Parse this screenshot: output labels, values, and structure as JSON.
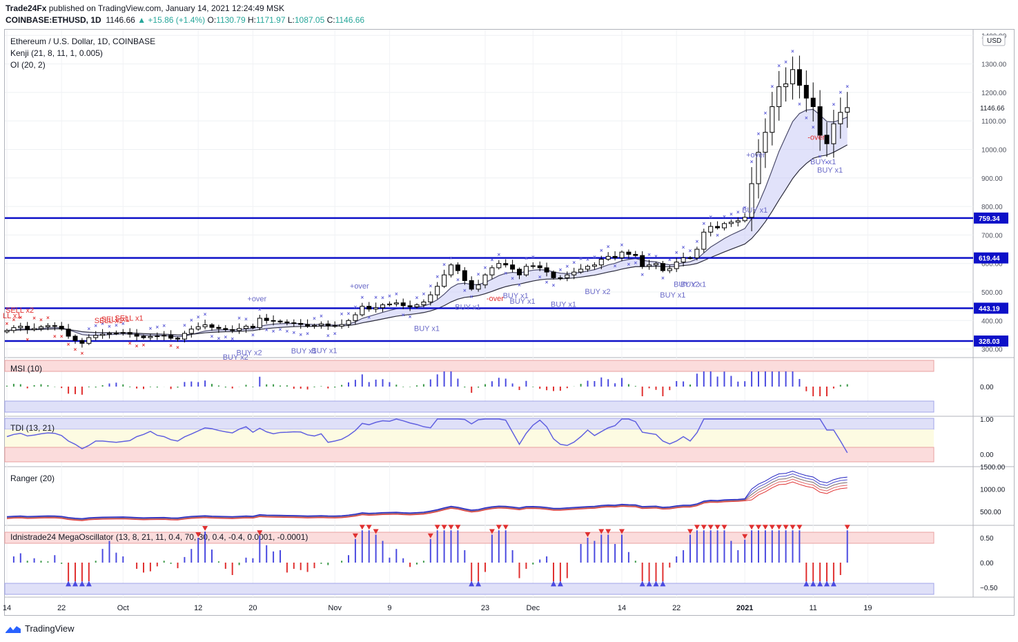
{
  "header": {
    "publisher": "Trade24Fx",
    "published_text": "published on TradingView.com, January 14, 2021 12:24:49 MSK",
    "symbol": "COINBASE:ETHUSD, 1D",
    "last": "1146.66",
    "change": "▲ +15.86 (+1.4%)",
    "o_label": "O:",
    "o": "1130.79",
    "h_label": "H:",
    "h": "1171.97",
    "l_label": "L:",
    "l": "1087.05",
    "c_label": "C:",
    "c": "1146.66"
  },
  "legend": {
    "title": "Ethereum / U.S. Dollar, 1D, COINBASE",
    "kenji": "Kenji (21, 8, 11, 1, 0.005)",
    "oi": "OI (20, 2)"
  },
  "panes": {
    "msi": "MSI (10)",
    "tdi": "TDI (13, 21)",
    "ranger": "Ranger (20)",
    "mega": "Idnistrade24 MegaOscillator (13, 8, 21, 11, 0.4, 70, 30, 0.4, -0.4, 0.0001, -0.0001)"
  },
  "footer": {
    "brand": "TradingView"
  },
  "colors": {
    "level": "#0d10c8",
    "up": "#ffffff",
    "down": "#000000",
    "cross": "#5b5bd6",
    "sell": "#e03030",
    "buy": "#6a6ac8",
    "bar_blue": "#4a4ae0",
    "bar_green": "#3c9a4a",
    "bar_red": "#e03030",
    "tdi_line": "#6060e0"
  },
  "chart_data": {
    "type": "candlestick",
    "price_axis": {
      "unit": "USD",
      "ticks": [
        300,
        400,
        500,
        600,
        700,
        800,
        900,
        1000,
        1100,
        1200,
        1300,
        1400
      ],
      "tick_labels": [
        "300.00",
        "400.00",
        "500.00",
        "600.00",
        "700.00",
        "800.00",
        "900.00",
        "1000.00",
        "1100.00",
        "1200.00",
        "1300.00",
        "1400.00"
      ],
      "range": [
        270,
        1420
      ]
    },
    "levels": [
      {
        "value": 759.34,
        "label": "759.34"
      },
      {
        "value": 619.44,
        "label": "619.44"
      },
      {
        "value": 443.19,
        "label": "443.19"
      },
      {
        "value": 328.03,
        "label": "328.03"
      }
    ],
    "last_price": {
      "value": 1146.66,
      "label": "1146.66"
    },
    "x_axis": {
      "labels": [
        {
          "text": "14",
          "day": 0
        },
        {
          "text": "22",
          "day": 8
        },
        {
          "text": "Oct",
          "day": 17
        },
        {
          "text": "12",
          "day": 28
        },
        {
          "text": "20",
          "day": 36
        },
        {
          "text": "Nov",
          "day": 48
        },
        {
          "text": "9",
          "day": 56
        },
        {
          "text": "23",
          "day": 70
        },
        {
          "text": "Dec",
          "day": 77
        },
        {
          "text": "14",
          "day": 90
        },
        {
          "text": "22",
          "day": 98
        },
        {
          "text": "2021",
          "day": 108
        },
        {
          "text": "11",
          "day": 118
        },
        {
          "text": "19",
          "day": 126
        }
      ]
    },
    "close": [
      365,
      375,
      380,
      368,
      372,
      378,
      382,
      380,
      370,
      345,
      330,
      320,
      340,
      348,
      352,
      355,
      356,
      358,
      352,
      345,
      340,
      344,
      346,
      348,
      338,
      335,
      355,
      370,
      378,
      385,
      376,
      372,
      368,
      365,
      372,
      380,
      375,
      408,
      400,
      398,
      395,
      392,
      390,
      386,
      380,
      383,
      388,
      382,
      380,
      386,
      400,
      420,
      450,
      440,
      445,
      455,
      458,
      462,
      452,
      448,
      455,
      465,
      490,
      520,
      560,
      595,
      575,
      540,
      510,
      525,
      560,
      585,
      600,
      595,
      580,
      560,
      590,
      592,
      585,
      570,
      550,
      550,
      560,
      570,
      580,
      590,
      595,
      615,
      625,
      620,
      640,
      632,
      628,
      590,
      595,
      600,
      575,
      582,
      605,
      620,
      620,
      650,
      710,
      730,
      725,
      740,
      745,
      750,
      762,
      880,
      990,
      1060,
      1150,
      1220,
      1230,
      1280,
      1225,
      1180,
      1150,
      1050,
      1020,
      1090,
      1130,
      1146.66
    ],
    "open": [
      360,
      365,
      375,
      380,
      368,
      372,
      378,
      382,
      380,
      370,
      345,
      330,
      320,
      340,
      348,
      352,
      355,
      356,
      358,
      352,
      345,
      340,
      344,
      346,
      348,
      338,
      335,
      355,
      370,
      378,
      385,
      376,
      372,
      368,
      365,
      372,
      380,
      375,
      408,
      400,
      398,
      395,
      392,
      390,
      386,
      380,
      383,
      388,
      382,
      380,
      386,
      400,
      420,
      450,
      440,
      445,
      455,
      458,
      462,
      452,
      448,
      455,
      465,
      490,
      520,
      560,
      595,
      575,
      540,
      510,
      525,
      560,
      585,
      600,
      595,
      580,
      560,
      590,
      592,
      585,
      570,
      550,
      550,
      560,
      570,
      580,
      590,
      595,
      615,
      625,
      620,
      640,
      632,
      628,
      590,
      595,
      600,
      575,
      582,
      605,
      620,
      620,
      650,
      710,
      730,
      725,
      740,
      745,
      750,
      762,
      880,
      990,
      1060,
      1150,
      1220,
      1230,
      1280,
      1225,
      1180,
      1150,
      1050,
      1020,
      1090,
      1130.79
    ],
    "buy_labels": [
      {
        "day": 33,
        "text": "BUY x2"
      },
      {
        "day": 35,
        "text": "BUY x2"
      },
      {
        "day": 43,
        "text": "BUY x1"
      },
      {
        "day": 46,
        "text": "BUY x1"
      },
      {
        "day": 61,
        "text": "BUY x1"
      },
      {
        "day": 67,
        "text": "BUY x1"
      },
      {
        "day": 74,
        "text": "BUY x1"
      },
      {
        "day": 75,
        "text": "BUY x1"
      },
      {
        "day": 81,
        "text": "BUY x1"
      },
      {
        "day": 86,
        "text": "BUY x2"
      },
      {
        "day": 97,
        "text": "BUY x1"
      },
      {
        "day": 99,
        "text": "BUY x2"
      },
      {
        "day": 100,
        "text": "BUY x1"
      },
      {
        "day": 109,
        "text": "BUY x1"
      },
      {
        "day": 119,
        "text": "BUY x1"
      },
      {
        "day": 120,
        "text": "BUY x1"
      }
    ],
    "sell_labels": [
      {
        "day": 0,
        "text": "SELL x2"
      },
      {
        "day": 0,
        "text": "LL x1"
      },
      {
        "day": 14,
        "text": "SELL x1"
      },
      {
        "day": 16,
        "text": "SELL x1"
      },
      {
        "day": 13,
        "text": "SELL x1"
      }
    ],
    "over_labels": [
      {
        "day": 51,
        "text": "+over",
        "kind": "plus"
      },
      {
        "day": 36,
        "text": "+over",
        "kind": "plus"
      },
      {
        "day": 71,
        "text": "-over",
        "kind": "minus"
      },
      {
        "day": 109,
        "text": "+over",
        "kind": "plus"
      },
      {
        "day": 118,
        "text": "-over",
        "kind": "minus"
      }
    ],
    "indicators": {
      "msi": {
        "ticks": [
          {
            "value": 0,
            "label": "0.00"
          }
        ]
      },
      "tdi": {
        "ticks": [
          {
            "value": 1,
            "label": "1.00"
          },
          {
            "value": 0,
            "label": "0.00"
          }
        ]
      },
      "ranger": {
        "ticks": [
          {
            "value": 500,
            "label": "500.00"
          },
          {
            "value": 1000,
            "label": "1000.00"
          },
          {
            "value": 1500,
            "label": "1500.00"
          }
        ]
      },
      "mega": {
        "ticks": [
          {
            "value": 0.5,
            "label": "0.50"
          },
          {
            "value": 0,
            "label": "0.00"
          },
          {
            "value": -0.5,
            "label": "−0.50"
          }
        ]
      }
    }
  }
}
